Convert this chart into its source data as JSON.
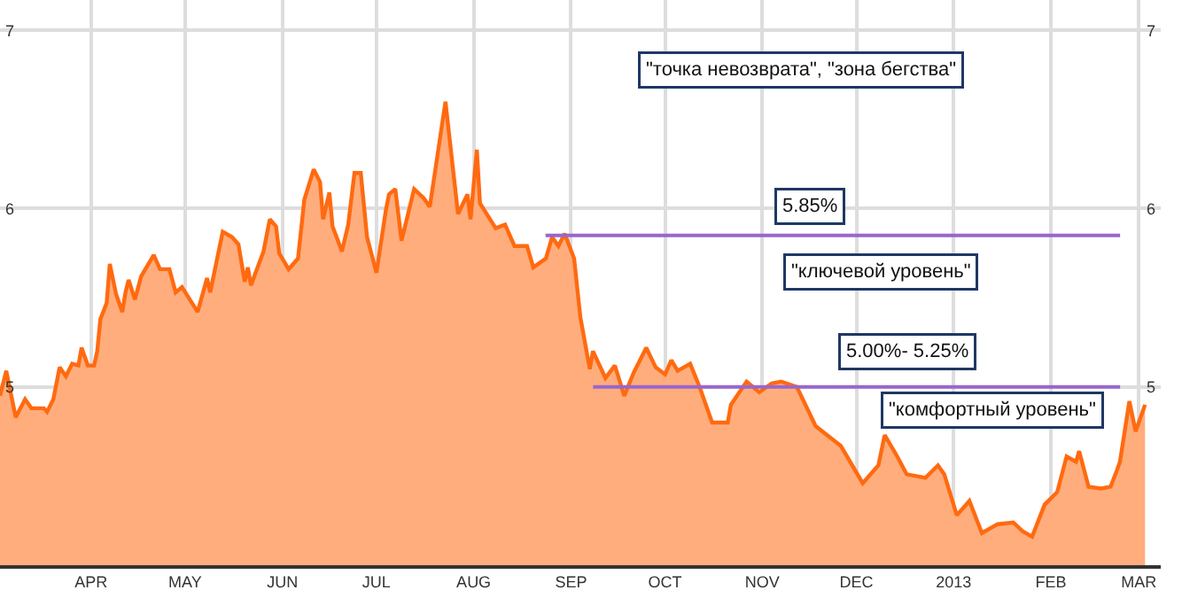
{
  "chart_data": {
    "type": "area",
    "x": [
      "2012-03-03",
      "2012-03-05",
      "2012-03-08",
      "2012-03-11",
      "2012-03-13",
      "2012-03-17",
      "2012-03-18",
      "2012-03-20",
      "2012-03-22",
      "2012-03-24",
      "2012-03-26",
      "2012-03-28",
      "2012-03-29",
      "2012-03-31",
      "2012-04-02",
      "2012-04-03",
      "2012-04-04",
      "2012-04-06",
      "2012-04-07",
      "2012-04-09",
      "2012-04-11",
      "2012-04-12",
      "2012-04-13",
      "2012-04-15",
      "2012-04-17",
      "2012-04-21",
      "2012-04-23",
      "2012-04-26",
      "2012-04-28",
      "2012-04-30",
      "2012-05-05",
      "2012-05-08",
      "2012-05-09",
      "2012-05-13",
      "2012-05-16",
      "2012-05-18",
      "2012-05-20",
      "2012-05-21",
      "2012-05-22",
      "2012-05-26",
      "2012-05-28",
      "2012-05-30",
      "2012-05-31",
      "2012-06-03",
      "2012-06-06",
      "2012-06-08",
      "2012-06-11",
      "2012-06-13",
      "2012-06-14",
      "2012-06-16",
      "2012-06-17",
      "2012-06-20",
      "2012-06-22",
      "2012-06-24",
      "2012-06-26",
      "2012-06-28",
      "2012-07-01",
      "2012-07-04",
      "2012-07-05",
      "2012-07-07",
      "2012-07-09",
      "2012-07-13",
      "2012-07-16",
      "2012-07-18",
      "2012-07-23",
      "2012-07-27",
      "2012-07-30",
      "2012-07-31",
      "2012-08-02",
      "2012-08-03",
      "2012-08-08",
      "2012-08-11",
      "2012-08-14",
      "2012-08-18",
      "2012-08-20",
      "2012-08-24",
      "2012-08-26",
      "2012-08-28",
      "2012-08-30",
      "2012-09-02",
      "2012-09-04",
      "2012-09-07",
      "2012-09-08",
      "2012-09-12",
      "2012-09-15",
      "2012-09-18",
      "2012-09-21",
      "2012-09-25",
      "2012-09-28",
      "2012-10-01",
      "2012-10-03",
      "2012-10-05",
      "2012-10-09",
      "2012-10-12",
      "2012-10-16",
      "2012-10-21",
      "2012-10-22",
      "2012-10-27",
      "2012-10-31",
      "2012-11-04",
      "2012-11-07",
      "2012-11-12",
      "2012-11-18",
      "2012-11-26",
      "2012-12-03",
      "2012-12-08",
      "2012-12-10",
      "2012-12-14",
      "2012-12-17",
      "2012-12-23",
      "2012-12-27",
      "2012-12-29",
      "2013-01-02",
      "2013-01-06",
      "2013-01-10",
      "2013-01-15",
      "2013-01-20",
      "2013-01-23",
      "2013-01-26",
      "2013-01-30",
      "2013-02-03",
      "2013-02-06",
      "2013-02-09",
      "2013-02-10",
      "2013-02-13",
      "2013-02-17",
      "2013-02-20",
      "2013-02-22",
      "2013-02-23",
      "2013-02-26",
      "2013-02-28",
      "2013-03-03"
    ],
    "series": [
      {
        "color": "#ff6a10",
        "values": [
          4.95,
          5.09,
          4.83,
          4.93,
          4.88,
          4.88,
          4.86,
          4.93,
          5.11,
          5.06,
          5.13,
          5.12,
          5.22,
          5.12,
          5.12,
          5.2,
          5.38,
          5.47,
          5.69,
          5.52,
          5.42,
          5.53,
          5.6,
          5.49,
          5.62,
          5.74,
          5.66,
          5.66,
          5.53,
          5.56,
          5.42,
          5.61,
          5.53,
          5.87,
          5.84,
          5.8,
          5.59,
          5.67,
          5.57,
          5.76,
          5.94,
          5.9,
          5.75,
          5.66,
          5.72,
          6.05,
          6.22,
          6.15,
          5.94,
          6.09,
          5.9,
          5.76,
          5.91,
          6.2,
          6.2,
          5.84,
          5.64,
          5.99,
          6.08,
          6.11,
          5.82,
          6.11,
          6.06,
          6.01,
          6.6,
          5.97,
          6.08,
          5.94,
          6.33,
          6.03,
          5.89,
          5.91,
          5.79,
          5.79,
          5.67,
          5.72,
          5.84,
          5.79,
          5.86,
          5.72,
          5.39,
          5.1,
          5.2,
          5.05,
          5.12,
          4.95,
          5.08,
          5.22,
          5.11,
          5.07,
          5.15,
          5.09,
          5.13,
          5.0,
          4.8,
          4.8,
          4.9,
          5.03,
          4.97,
          5.02,
          5.03,
          5.0,
          4.78,
          4.67,
          4.46,
          4.56,
          4.73,
          4.61,
          4.51,
          4.49,
          4.56,
          4.51,
          4.28,
          4.36,
          4.18,
          4.23,
          4.24,
          4.19,
          4.16,
          4.34,
          4.41,
          4.61,
          4.58,
          4.64,
          4.44,
          4.43,
          4.44,
          4.53,
          4.58,
          4.92,
          4.75,
          4.9
        ]
      }
    ],
    "xlim": [
      "2012-03-03",
      "2013-03-08"
    ],
    "xticks": [
      {
        "value": "2012-04-01",
        "label": "APR"
      },
      {
        "value": "2012-05-01",
        "label": "MAY"
      },
      {
        "value": "2012-06-01",
        "label": "JUN"
      },
      {
        "value": "2012-07-01",
        "label": "JUL"
      },
      {
        "value": "2012-08-01",
        "label": "AUG"
      },
      {
        "value": "2012-09-01",
        "label": "SEP"
      },
      {
        "value": "2012-10-01",
        "label": "OCT"
      },
      {
        "value": "2012-11-01",
        "label": "NOV"
      },
      {
        "value": "2012-12-01",
        "label": "DEC"
      },
      {
        "value": "2013-01-01",
        "label": "2013"
      },
      {
        "value": "2013-02-01",
        "label": "FEB"
      },
      {
        "value": "2013-03-01",
        "label": "MAR"
      }
    ],
    "ylim": [
      4.0,
      7.17
    ],
    "yticks": [
      5,
      6,
      7
    ],
    "y2lim": [
      4.0,
      7.17
    ],
    "y2ticks": [
      5,
      6,
      7
    ],
    "grid": true,
    "ref_lines": [
      {
        "axis": "y",
        "value": 5.85,
        "label": "5.85%",
        "color": "#9966cc"
      },
      {
        "axis": "y",
        "value": 5.0,
        "label": "5.00%- 5.25%",
        "color": "#9966cc"
      }
    ],
    "annotations": [
      "\"точка невозврата\", \"зона бегства\"",
      "\"ключевой уровень\"",
      "\"комфортный уровень\""
    ]
  }
}
